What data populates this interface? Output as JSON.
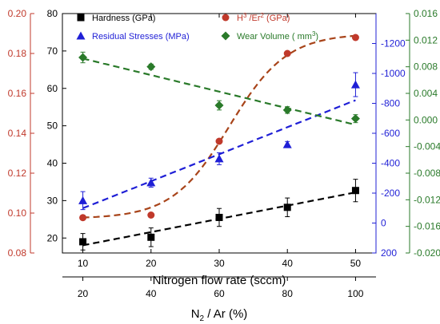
{
  "chart_data": {
    "type": "scatter",
    "title": "",
    "x": [
      10,
      20,
      30,
      40,
      50
    ],
    "xlabel": "Nitrogen flow rate (sccm)",
    "xlim": [
      7,
      53
    ],
    "xticks": [
      "10",
      "20",
      "30",
      "40",
      "50"
    ],
    "secondary_x": {
      "label": "N2 / Ar (%)",
      "label_main": "N",
      "label_sub": "2",
      "label_rest": " / Ar (%)",
      "ticks": [
        "20",
        "40",
        "60",
        "80",
        "100"
      ]
    },
    "axes": {
      "hardness": {
        "ylim": [
          16,
          80
        ],
        "ticks": [
          "20",
          "30",
          "40",
          "50",
          "60",
          "70",
          "80"
        ],
        "color": "#000000"
      },
      "h3er2": {
        "ylim": [
          0.08,
          0.2
        ],
        "ticks": [
          "0.08",
          "0.10",
          "0.12",
          "0.14",
          "0.16",
          "0.18",
          "0.20"
        ],
        "color": "#c0392b"
      },
      "stress": {
        "ylim": [
          200,
          -1400
        ],
        "inverted": true,
        "ticks": [
          "200",
          "0",
          "-200",
          "-400",
          "-600",
          "-800",
          "-1000",
          "-1200"
        ],
        "color": "#1f1fd6"
      },
      "wear": {
        "ylim": [
          -0.02,
          0.016
        ],
        "ticks": [
          "-0.020",
          "-0.016",
          "-0.012",
          "-0.008",
          "-0.004",
          "0.000",
          "0.004",
          "0.008",
          "0.012",
          "0.016"
        ],
        "color": "#2a7a2a"
      }
    },
    "legend_position": "top",
    "series": [
      {
        "name": "Hardness (GPa)",
        "axis": "hardness",
        "marker": "square",
        "color": "#000000",
        "fit_color": "#000000",
        "values": [
          19.0,
          20.2,
          25.5,
          28.2,
          32.7
        ],
        "errors": [
          2.2,
          2.5,
          2.4,
          2.5,
          3.0
        ],
        "fit": "linear"
      },
      {
        "name": "H3/Er2 (GPa)",
        "legend_base": "H",
        "legend_sup1": "3",
        "legend_mid": " /Er",
        "legend_sup2": "2",
        "legend_rest": " (GPa)",
        "axis": "h3er2",
        "marker": "circle",
        "color": "#c0392b",
        "fit_color": "#a8441a",
        "values": [
          0.0977,
          0.099,
          0.136,
          0.18,
          0.188
        ],
        "errors": [
          0,
          0,
          0,
          0,
          0
        ],
        "fit": "sigmoid"
      },
      {
        "name": "Residual Stresses (MPa)",
        "axis": "stress",
        "marker": "triangle",
        "color": "#1f1fd6",
        "fit_color": "#1f1fd6",
        "values": [
          -150,
          -270,
          -430,
          -525,
          -925
        ],
        "errors": [
          60,
          30,
          40,
          20,
          80
        ],
        "fit": "linear"
      },
      {
        "name": "Wear Volume ( mm3)",
        "legend_base": "Wear Volume ( mm",
        "legend_sup1": "3",
        "legend_rest": ")",
        "axis": "wear",
        "marker": "diamond",
        "color": "#2a7a2a",
        "fit_color": "#2a7a2a",
        "values": [
          0.0094,
          0.008,
          0.0022,
          0.0015,
          0.0002
        ],
        "errors": [
          0.0008,
          0.0004,
          0.0007,
          0.0005,
          0.0006
        ],
        "fit": "linear"
      }
    ]
  }
}
